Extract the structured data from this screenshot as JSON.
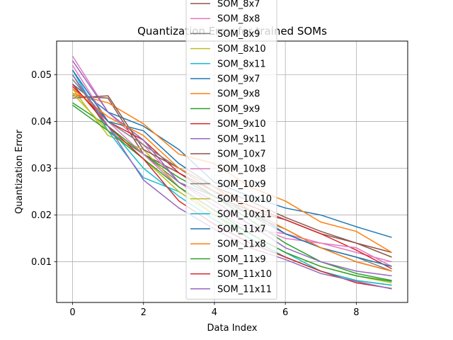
{
  "chart_data": {
    "type": "line",
    "title": "Quantization Error for trained SOMs",
    "xlabel": "Data Index",
    "ylabel": "Quantization Error",
    "xlim": [
      -0.45,
      9.45
    ],
    "ylim": [
      0.0013,
      0.0572
    ],
    "xticks": [
      0,
      2,
      4,
      6,
      8
    ],
    "yticks": [
      0.01,
      0.02,
      0.03,
      0.04,
      0.05
    ],
    "ytick_labels": [
      "0.01",
      "0.02",
      "0.03",
      "0.04",
      "0.05"
    ],
    "grid": true,
    "legend_position": "upper center",
    "x": [
      0,
      1,
      2,
      3,
      4,
      5,
      6,
      7,
      8,
      9
    ],
    "series": [
      {
        "name": "SOM_8x7",
        "color": "#8c564b",
        "values": [
          0.0455,
          0.045,
          0.033,
          0.029,
          0.024,
          0.021,
          0.019,
          0.016,
          0.014,
          0.012
        ]
      },
      {
        "name": "SOM_8x8",
        "color": "#e377c2",
        "values": [
          0.054,
          0.042,
          0.035,
          0.027,
          0.022,
          0.018,
          0.015,
          0.014,
          0.012,
          0.01
        ]
      },
      {
        "name": "SOM_8x9",
        "color": "#7f7f7f",
        "values": [
          0.05,
          0.038,
          0.033,
          0.027,
          0.024,
          0.02,
          0.016,
          0.013,
          0.01,
          0.008
        ]
      },
      {
        "name": "SOM_8x10",
        "color": "#bcbd22",
        "values": [
          0.047,
          0.037,
          0.034,
          0.026,
          0.02,
          0.016,
          0.012,
          0.009,
          0.007,
          0.0055
        ]
      },
      {
        "name": "SOM_8x11",
        "color": "#17becf",
        "values": [
          0.051,
          0.038,
          0.028,
          0.025,
          0.02,
          0.016,
          0.012,
          0.008,
          0.006,
          0.005
        ]
      },
      {
        "name": "SOM_9x7",
        "color": "#1f77b4",
        "values": [
          0.048,
          0.042,
          0.039,
          0.034,
          0.027,
          0.024,
          0.0215,
          0.02,
          0.0175,
          0.0152
        ]
      },
      {
        "name": "SOM_9x8",
        "color": "#ff7f0e",
        "values": [
          0.046,
          0.044,
          0.0395,
          0.033,
          0.031,
          0.026,
          0.023,
          0.0185,
          0.0165,
          0.012
        ]
      },
      {
        "name": "SOM_9x9",
        "color": "#2ca02c",
        "values": [
          0.044,
          0.039,
          0.033,
          0.028,
          0.024,
          0.019,
          0.014,
          0.01,
          0.0075,
          0.006
        ]
      },
      {
        "name": "SOM_9x10",
        "color": "#d62728",
        "values": [
          0.0475,
          0.04,
          0.036,
          0.029,
          0.025,
          0.022,
          0.019,
          0.016,
          0.0125,
          0.0085
        ]
      },
      {
        "name": "SOM_9x11",
        "color": "#9467bd",
        "values": [
          0.053,
          0.042,
          0.036,
          0.027,
          0.023,
          0.018,
          0.013,
          0.01,
          0.008,
          0.007
        ]
      },
      {
        "name": "SOM_10x7",
        "color": "#8c564b",
        "values": [
          0.045,
          0.0455,
          0.034,
          0.03,
          0.026,
          0.023,
          0.0195,
          0.0165,
          0.014,
          0.011
        ]
      },
      {
        "name": "SOM_10x8",
        "color": "#e377c2",
        "values": [
          0.052,
          0.04,
          0.033,
          0.026,
          0.021,
          0.017,
          0.016,
          0.014,
          0.013,
          0.009
        ]
      },
      {
        "name": "SOM_10x9",
        "color": "#7f7f7f",
        "values": [
          0.049,
          0.04,
          0.035,
          0.03,
          0.025,
          0.02,
          0.017,
          0.013,
          0.011,
          0.008
        ]
      },
      {
        "name": "SOM_10x10",
        "color": "#bcbd22",
        "values": [
          0.046,
          0.038,
          0.032,
          0.025,
          0.02,
          0.015,
          0.011,
          0.008,
          0.006,
          0.005
        ]
      },
      {
        "name": "SOM_10x11",
        "color": "#17becf",
        "values": [
          0.05,
          0.039,
          0.03,
          0.024,
          0.019,
          0.015,
          0.011,
          0.008,
          0.006,
          0.005
        ]
      },
      {
        "name": "SOM_11x7",
        "color": "#1f77b4",
        "values": [
          0.051,
          0.04,
          0.038,
          0.031,
          0.026,
          0.021,
          0.016,
          0.013,
          0.011,
          0.009
        ]
      },
      {
        "name": "SOM_11x8",
        "color": "#ff7f0e",
        "values": [
          0.047,
          0.041,
          0.037,
          0.03,
          0.026,
          0.021,
          0.017,
          0.013,
          0.01,
          0.008
        ]
      },
      {
        "name": "SOM_11x9",
        "color": "#2ca02c",
        "values": [
          0.0435,
          0.038,
          0.032,
          0.026,
          0.021,
          0.016,
          0.012,
          0.009,
          0.007,
          0.0058
        ]
      },
      {
        "name": "SOM_11x10",
        "color": "#d62728",
        "values": [
          0.048,
          0.039,
          0.032,
          0.023,
          0.018,
          0.014,
          0.011,
          0.008,
          0.0055,
          0.0043
        ]
      },
      {
        "name": "SOM_11x11",
        "color": "#9467bd",
        "values": [
          0.05,
          0.039,
          0.0275,
          0.0215,
          0.017,
          0.013,
          0.0105,
          0.0075,
          0.0058,
          0.0042
        ]
      }
    ]
  }
}
